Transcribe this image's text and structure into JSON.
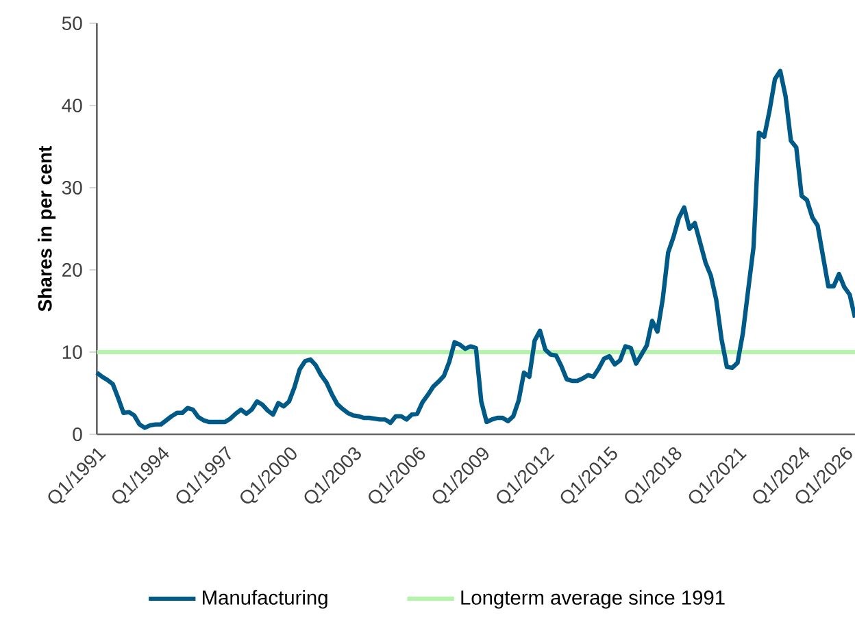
{
  "chart_data": {
    "type": "line",
    "ylabel": "Shares in per cent",
    "ylim": [
      0,
      50
    ],
    "yticks": [
      0,
      10,
      20,
      30,
      40,
      50
    ],
    "grid": false,
    "legend": "bottom",
    "marker": "none",
    "line_style": "solid",
    "categories": [
      "Q1/1991",
      null,
      null,
      null,
      null,
      null,
      null,
      null,
      null,
      null,
      null,
      null,
      "Q1/1994",
      null,
      null,
      null,
      null,
      null,
      null,
      null,
      null,
      null,
      null,
      null,
      "Q1/1997",
      null,
      null,
      null,
      null,
      null,
      null,
      null,
      null,
      null,
      null,
      null,
      "Q1/2000",
      null,
      null,
      null,
      null,
      null,
      null,
      null,
      null,
      null,
      null,
      null,
      "Q1/2003",
      null,
      null,
      null,
      null,
      null,
      null,
      null,
      null,
      null,
      null,
      null,
      "Q1/2006",
      null,
      null,
      null,
      null,
      null,
      null,
      null,
      null,
      null,
      null,
      null,
      "Q1/2009",
      null,
      null,
      null,
      null,
      null,
      null,
      null,
      null,
      null,
      null,
      null,
      "Q1/2012",
      null,
      null,
      null,
      null,
      null,
      null,
      null,
      null,
      null,
      null,
      null,
      "Q1/2015",
      null,
      null,
      null,
      null,
      null,
      null,
      null,
      null,
      null,
      null,
      null,
      "Q1/2018",
      null,
      null,
      null,
      null,
      null,
      null,
      null,
      null,
      null,
      null,
      null,
      "Q1/2021",
      null,
      null,
      null,
      null,
      null,
      null,
      null,
      null,
      null,
      null,
      null,
      "Q1/2024",
      null,
      null,
      null,
      null,
      null,
      null,
      null,
      "Q1/2026",
      null,
      null
    ],
    "series": [
      {
        "name": "Manufacturing",
        "color": "#005a87",
        "values": [
          7.5,
          7.0,
          6.6,
          6.1,
          4.4,
          2.6,
          2.7,
          2.3,
          1.2,
          0.8,
          1.1,
          1.2,
          1.2,
          1.7,
          2.2,
          2.6,
          2.6,
          3.2,
          3.0,
          2.1,
          1.7,
          1.5,
          1.5,
          1.5,
          1.5,
          1.9,
          2.5,
          3.0,
          2.5,
          3.0,
          4.0,
          3.6,
          2.9,
          2.4,
          3.8,
          3.4,
          4.0,
          5.7,
          7.9,
          8.9,
          9.1,
          8.4,
          7.2,
          6.3,
          4.9,
          3.7,
          3.1,
          2.6,
          2.3,
          2.2,
          2.0,
          2.0,
          1.9,
          1.8,
          1.8,
          1.4,
          2.2,
          2.2,
          1.8,
          2.4,
          2.5,
          3.9,
          4.8,
          5.8,
          6.4,
          7.1,
          8.8,
          11.2,
          10.9,
          10.4,
          10.7,
          10.5,
          4.0,
          1.5,
          1.8,
          2.0,
          2.0,
          1.6,
          2.2,
          4.1,
          7.5,
          7.0,
          11.4,
          12.6,
          10.3,
          9.7,
          9.6,
          8.3,
          6.7,
          6.5,
          6.5,
          6.8,
          7.2,
          7.0,
          8.0,
          9.2,
          9.5,
          8.5,
          9.0,
          10.7,
          10.5,
          8.6,
          9.7,
          10.8,
          13.8,
          12.5,
          16.5,
          22.1,
          24.0,
          26.3,
          27.6,
          25.0,
          25.7,
          23.3,
          20.9,
          19.3,
          16.4,
          11.6,
          8.2,
          8.1,
          8.7,
          12.3,
          17.6,
          22.8,
          36.7,
          36.2,
          39.4,
          43.2,
          44.2,
          41.1,
          35.7,
          34.9,
          29.0,
          28.5,
          26.4,
          25.4,
          21.7,
          18.0,
          18.0,
          19.5,
          17.9,
          17.0,
          14.2
        ]
      }
    ],
    "ref_lines": [
      {
        "axis": "y",
        "value": 10,
        "label": "Longterm average since 1991",
        "color": "#b3f5a8"
      }
    ]
  }
}
